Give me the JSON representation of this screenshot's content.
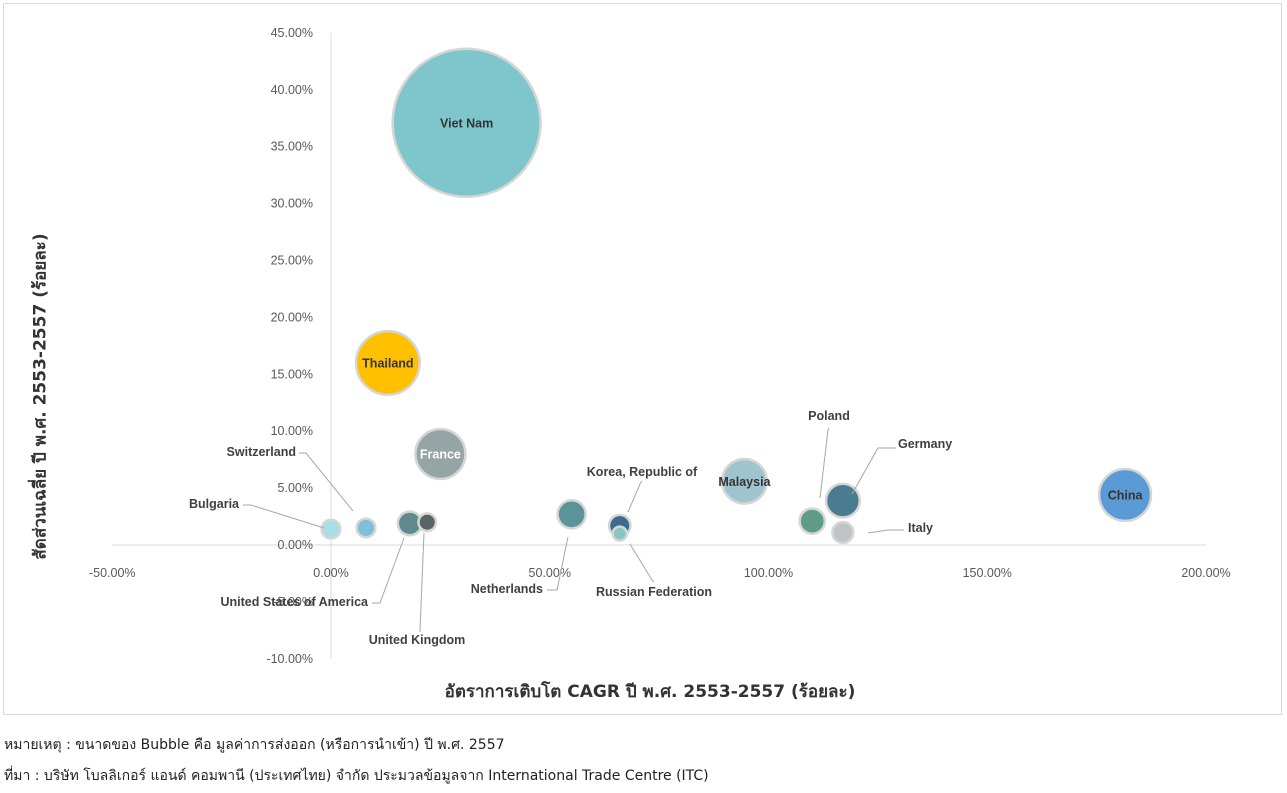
{
  "chart_data": {
    "type": "scatter",
    "subtype": "bubble",
    "xlabel": "อัตราการเติบโต CAGR ปี พ.ศ. 2553-2557 (ร้อยละ)",
    "ylabel": "สัดส่วนเฉลี่ย ปี พ.ศ. 2553-2557 (ร้อยละ)",
    "xlim": [
      -50,
      200
    ],
    "ylim": [
      -10,
      45
    ],
    "x_ticks": [
      {
        "value": -50,
        "label": "-50.00%"
      },
      {
        "value": 0,
        "label": "0.00%"
      },
      {
        "value": 50,
        "label": "50.00%"
      },
      {
        "value": 100,
        "label": "100.00%"
      },
      {
        "value": 150,
        "label": "150.00%"
      },
      {
        "value": 200,
        "label": "200.00%"
      }
    ],
    "y_ticks": [
      {
        "value": 45,
        "label": "45.00%"
      },
      {
        "value": 40,
        "label": "40.00%"
      },
      {
        "value": 35,
        "label": "35.00%"
      },
      {
        "value": 30,
        "label": "30.00%"
      },
      {
        "value": 25,
        "label": "25.00%"
      },
      {
        "value": 20,
        "label": "20.00%"
      },
      {
        "value": 15,
        "label": "15.00%"
      },
      {
        "value": 10,
        "label": "10.00%"
      },
      {
        "value": 5,
        "label": "5.00%"
      },
      {
        "value": 0,
        "label": "0.00%"
      },
      {
        "value": -5,
        "label": "-5.00%"
      },
      {
        "value": -10,
        "label": "-10.00%"
      }
    ],
    "grid": false,
    "legend": "none",
    "points": [
      {
        "name": "Viet Nam",
        "x": 31,
        "y": 37.1,
        "size": 100,
        "color": "#7fc6cc",
        "label_inside": true,
        "label_color": "#333333"
      },
      {
        "name": "Thailand",
        "x": 13,
        "y": 16.0,
        "size": 18.5,
        "color": "#ffc000",
        "label_inside": true,
        "label_color": "#333333"
      },
      {
        "name": "France",
        "x": 25,
        "y": 8.0,
        "size": 11.4,
        "color": "#95a5a6",
        "label_inside": true,
        "label_color": "#ffffff"
      },
      {
        "name": "Malaysia",
        "x": 94.5,
        "y": 5.6,
        "size": 9.1,
        "color": "#a0c4cf",
        "label_inside": true,
        "label_color": "#333333"
      },
      {
        "name": "China",
        "x": 181.5,
        "y": 4.4,
        "size": 12.3,
        "color": "#5b9bd5",
        "label_inside": true,
        "label_color": "#333333"
      },
      {
        "name": "Germany",
        "x": 117,
        "y": 3.9,
        "size": 5.2,
        "color": "#4a7c90"
      },
      {
        "name": "Netherlands",
        "x": 55,
        "y": 2.7,
        "size": 3.6,
        "color": "#5b9498"
      },
      {
        "name": "Poland",
        "x": 110,
        "y": 2.1,
        "size": 2.9,
        "color": "#5e9c88"
      },
      {
        "name": "Korea, Republic of",
        "x": 66,
        "y": 1.7,
        "size": 2.1,
        "color": "#3c6b8c"
      },
      {
        "name": "Italy",
        "x": 117,
        "y": 1.1,
        "size": 2.0,
        "color": "#bfc3c6"
      },
      {
        "name": "Switzerland",
        "x": 8,
        "y": 1.5,
        "size": 1.6,
        "color": "#7fbfdb"
      },
      {
        "name": "Bulgaria",
        "x": 0,
        "y": 1.4,
        "size": 1.6,
        "color": "#a8dde5"
      },
      {
        "name": "United States of America",
        "x": 18,
        "y": 1.9,
        "size": 2.6,
        "color": "#5f8a8e"
      },
      {
        "name": "United Kingdom",
        "x": 22,
        "y": 2.0,
        "size": 1.4,
        "color": "#5a6466"
      },
      {
        "name": "Russian Federation",
        "x": 66,
        "y": 1.0,
        "size": 0.9,
        "color": "#88c4c0"
      }
    ]
  },
  "notes": {
    "size_note": "หมายเหตุ : ขนาดของ Bubble คือ มูลค่าการส่งออก (หรือการนำเข้า) ปี พ.ศ. 2557",
    "source": "ที่มา : บริษัท โบลลิเกอร์ แอนด์ คอมพานี (ประเทศไทย) จำกัด ประมวลข้อมูลจาก International Trade Centre (ITC)"
  }
}
